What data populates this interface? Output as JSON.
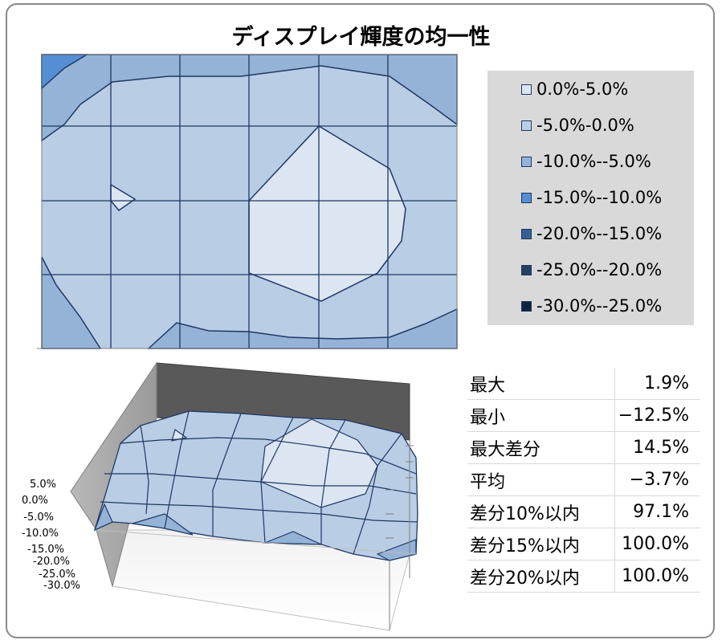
{
  "chart_data": [
    {
      "type": "contour",
      "title": "ディスプレイ輝度の均一性",
      "grid_columns": 6,
      "grid_rows": 4,
      "legend": {
        "placement": "right",
        "entries": [
          {
            "label": "0.0%-5.0%",
            "color": "#dce6f2"
          },
          {
            "label": "-5.0%-0.0%",
            "color": "#b9cde5"
          },
          {
            "label": "-10.0%--5.0%",
            "color": "#95b3d7"
          },
          {
            "label": "-15.0%--10.0%",
            "color": "#558ed5"
          },
          {
            "label": "-20.0%--15.0%",
            "color": "#366092"
          },
          {
            "label": "-25.0%--20.0%",
            "color": "#254061"
          },
          {
            "label": "-30.0%--25.0%",
            "color": "#0f243e"
          }
        ]
      }
    },
    {
      "type": "surface",
      "z_ticks": [
        "5.0%",
        "0.0%",
        "-5.0%",
        "-10.0%",
        "-15.0%",
        "-20.0%",
        "-25.0%",
        "-30.0%"
      ],
      "zlim": [
        -30.0,
        5.0
      ]
    },
    {
      "type": "table",
      "rows": [
        {
          "label": "最大",
          "value": "1.9%"
        },
        {
          "label": "最小",
          "value": "−12.5%"
        },
        {
          "label": "最大差分",
          "value": "14.5%"
        },
        {
          "label": "平均",
          "value": "−3.7%"
        },
        {
          "label": "差分10%以内",
          "value": "97.1%"
        },
        {
          "label": "差分15%以内",
          "value": "100.0%"
        },
        {
          "label": "差分20%以内",
          "value": "100.0%"
        }
      ]
    }
  ]
}
